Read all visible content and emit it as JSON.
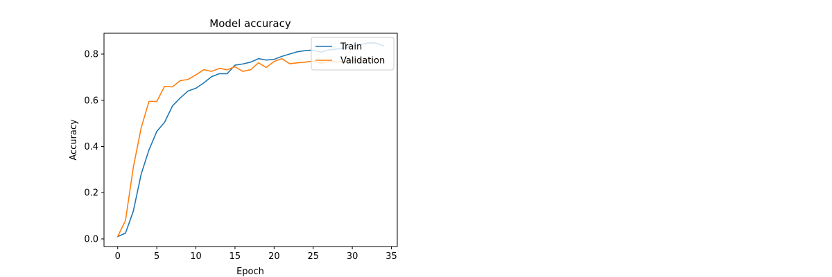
{
  "chart_data": {
    "type": "line",
    "title": "Model accuracy",
    "xlabel": "Epoch",
    "ylabel": "Accuracy",
    "xlim": [
      -1.75,
      35.75
    ],
    "ylim": [
      -0.033,
      0.89
    ],
    "x_ticks": [
      0,
      5,
      10,
      15,
      20,
      25,
      30,
      35
    ],
    "y_ticks": [
      0.0,
      0.2,
      0.4,
      0.6,
      0.8
    ],
    "legend_location": "top-right",
    "grid": false,
    "series": [
      {
        "name": "Train",
        "color": "#1f77b4",
        "x": [
          0,
          1,
          2,
          3,
          4,
          5,
          6,
          7,
          8,
          9,
          10,
          11,
          12,
          13,
          14,
          15,
          16,
          17,
          18,
          19,
          20,
          21,
          22,
          23,
          24,
          25,
          26,
          27,
          28,
          29,
          30,
          31,
          32,
          33,
          34
        ],
        "values": [
          0.01,
          0.025,
          0.12,
          0.28,
          0.385,
          0.465,
          0.505,
          0.575,
          0.61,
          0.64,
          0.652,
          0.675,
          0.702,
          0.715,
          0.715,
          0.752,
          0.757,
          0.765,
          0.78,
          0.774,
          0.777,
          0.79,
          0.8,
          0.81,
          0.815,
          0.817,
          0.808,
          0.818,
          0.822,
          0.826,
          0.835,
          0.84,
          0.848,
          0.848,
          0.835
        ]
      },
      {
        "name": "Validation",
        "color": "#ff7f0e",
        "x": [
          0,
          1,
          2,
          3,
          4,
          5,
          6,
          7,
          8,
          9,
          10,
          11,
          12,
          13,
          14,
          15,
          16,
          17,
          18,
          19,
          20,
          21,
          22,
          23,
          24,
          25,
          26,
          27,
          28,
          29,
          30,
          31,
          32,
          33,
          34
        ],
        "values": [
          0.01,
          0.08,
          0.31,
          0.48,
          0.595,
          0.595,
          0.66,
          0.658,
          0.685,
          0.69,
          0.71,
          0.732,
          0.725,
          0.738,
          0.732,
          0.745,
          0.725,
          0.732,
          0.762,
          0.742,
          0.768,
          0.78,
          0.758,
          0.762,
          0.765,
          0.77,
          0.76,
          0.768,
          0.765,
          0.768,
          0.772,
          0.772,
          0.775,
          0.778,
          0.772
        ]
      }
    ]
  }
}
